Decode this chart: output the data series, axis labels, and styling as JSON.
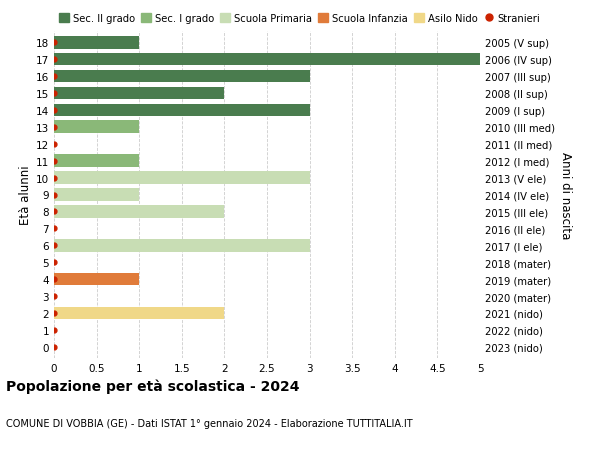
{
  "ages": [
    18,
    17,
    16,
    15,
    14,
    13,
    12,
    11,
    10,
    9,
    8,
    7,
    6,
    5,
    4,
    3,
    2,
    1,
    0
  ],
  "right_labels": [
    "2005 (V sup)",
    "2006 (IV sup)",
    "2007 (III sup)",
    "2008 (II sup)",
    "2009 (I sup)",
    "2010 (III med)",
    "2011 (II med)",
    "2012 (I med)",
    "2013 (V ele)",
    "2014 (IV ele)",
    "2015 (III ele)",
    "2016 (II ele)",
    "2017 (I ele)",
    "2018 (mater)",
    "2019 (mater)",
    "2020 (mater)",
    "2021 (nido)",
    "2022 (nido)",
    "2023 (nido)"
  ],
  "bar_values": [
    1,
    5,
    3,
    2,
    3,
    1,
    0,
    1,
    3,
    1,
    2,
    0,
    3,
    0,
    1,
    0,
    2,
    0,
    0
  ],
  "bar_colors": [
    "#4a7c4e",
    "#4a7c4e",
    "#4a7c4e",
    "#4a7c4e",
    "#4a7c4e",
    "#8ab878",
    "#8ab878",
    "#8ab878",
    "#c8ddb4",
    "#c8ddb4",
    "#c8ddb4",
    "#c8ddb4",
    "#c8ddb4",
    "#e07b3a",
    "#e07b3a",
    "#e07b3a",
    "#f0d888",
    "#f0d888",
    "#f0d888"
  ],
  "dot_color": "#cc2200",
  "xlim": [
    0,
    5.0
  ],
  "xticks": [
    0,
    0.5,
    1.0,
    1.5,
    2.0,
    2.5,
    3.0,
    3.5,
    4.0,
    4.5,
    5.0
  ],
  "ylabel_left": "Età alunni",
  "ylabel_right": "Anni di nascita",
  "title_bold": "Popolazione per età scolastica - 2024",
  "subtitle": "COMUNE DI VOBBIA (GE) - Dati ISTAT 1° gennaio 2024 - Elaborazione TUTTITALIA.IT",
  "legend_items": [
    {
      "label": "Sec. II grado",
      "color": "#4a7c4e"
    },
    {
      "label": "Sec. I grado",
      "color": "#8ab878"
    },
    {
      "label": "Scuola Primaria",
      "color": "#c8ddb4"
    },
    {
      "label": "Scuola Infanzia",
      "color": "#e07b3a"
    },
    {
      "label": "Asilo Nido",
      "color": "#f0d888"
    },
    {
      "label": "Stranieri",
      "color": "#cc2200"
    }
  ],
  "bg_color": "#ffffff",
  "grid_color": "#cccccc",
  "bar_height": 0.75
}
